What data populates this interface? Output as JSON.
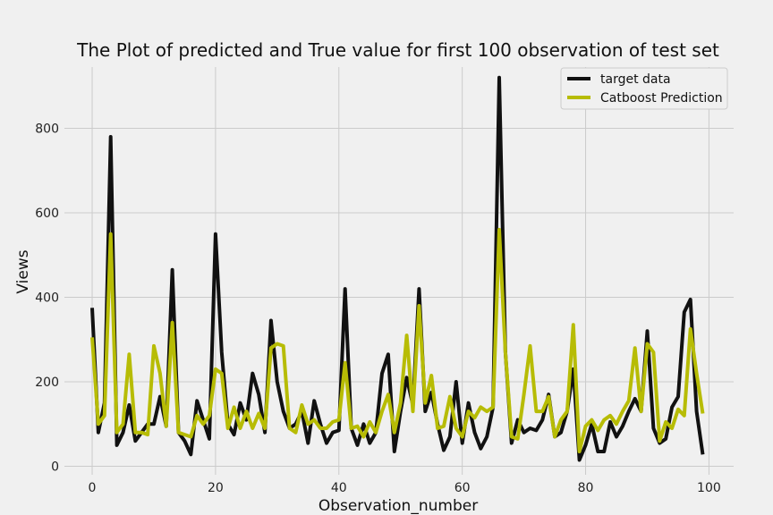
{
  "chart_data": {
    "type": "line",
    "title": "The Plot of predicted and True value for first 100 observation of test set",
    "xlabel": "Observation_number",
    "ylabel": "Views",
    "xlim": [
      -4.5,
      104
    ],
    "ylim": [
      -20,
      945
    ],
    "x_ticks": [
      0,
      20,
      40,
      60,
      80,
      100
    ],
    "y_ticks": [
      0,
      200,
      400,
      600,
      800
    ],
    "grid": true,
    "legend_position": "top-right",
    "x": [
      0,
      1,
      2,
      3,
      4,
      5,
      6,
      7,
      8,
      9,
      10,
      11,
      12,
      13,
      14,
      15,
      16,
      17,
      18,
      19,
      20,
      21,
      22,
      23,
      24,
      25,
      26,
      27,
      28,
      29,
      30,
      31,
      32,
      33,
      34,
      35,
      36,
      37,
      38,
      39,
      40,
      41,
      42,
      43,
      44,
      45,
      46,
      47,
      48,
      49,
      50,
      51,
      52,
      53,
      54,
      55,
      56,
      57,
      58,
      59,
      60,
      61,
      62,
      63,
      64,
      65,
      66,
      67,
      68,
      69,
      70,
      71,
      72,
      73,
      74,
      75,
      76,
      77,
      78,
      79,
      80,
      81,
      82,
      83,
      84,
      85,
      86,
      87,
      88,
      89,
      90,
      91,
      92,
      93,
      94,
      95,
      96,
      97,
      98,
      99
    ],
    "series": [
      {
        "name": "target data",
        "color": "#111111",
        "values": [
          375,
          80,
          150,
          780,
          50,
          80,
          145,
          60,
          80,
          100,
          100,
          165,
          95,
          465,
          80,
          60,
          28,
          155,
          110,
          65,
          550,
          270,
          100,
          75,
          150,
          110,
          220,
          170,
          80,
          345,
          200,
          130,
          90,
          100,
          130,
          55,
          155,
          100,
          55,
          80,
          85,
          420,
          90,
          50,
          100,
          55,
          80,
          220,
          265,
          35,
          130,
          210,
          145,
          420,
          130,
          175,
          100,
          38,
          70,
          200,
          55,
          150,
          80,
          42,
          70,
          140,
          920,
          270,
          55,
          110,
          80,
          90,
          85,
          110,
          170,
          70,
          80,
          130,
          230,
          15,
          50,
          100,
          35,
          35,
          105,
          70,
          95,
          130,
          160,
          130,
          320,
          90,
          55,
          65,
          140,
          165,
          365,
          395,
          130,
          28
        ]
      },
      {
        "name": "Catboost Prediction",
        "color": "#b7bc05",
        "values": [
          305,
          100,
          120,
          550,
          80,
          100,
          265,
          80,
          80,
          75,
          285,
          220,
          95,
          340,
          80,
          75,
          70,
          120,
          100,
          120,
          230,
          220,
          90,
          140,
          90,
          130,
          90,
          125,
          90,
          280,
          290,
          285,
          90,
          80,
          145,
          100,
          110,
          90,
          90,
          105,
          110,
          245,
          90,
          95,
          70,
          105,
          80,
          130,
          170,
          80,
          150,
          310,
          130,
          380,
          150,
          215,
          90,
          95,
          165,
          90,
          70,
          130,
          115,
          140,
          130,
          140,
          560,
          270,
          70,
          65,
          170,
          285,
          130,
          130,
          165,
          70,
          110,
          130,
          335,
          35,
          95,
          110,
          85,
          110,
          120,
          100,
          130,
          155,
          280,
          130,
          290,
          270,
          60,
          105,
          90,
          135,
          120,
          325,
          220,
          125
        ]
      }
    ]
  }
}
